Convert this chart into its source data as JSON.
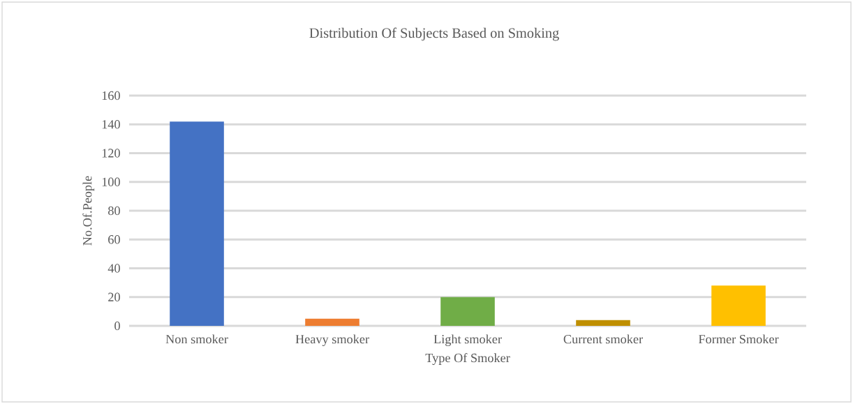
{
  "chart_data": {
    "type": "bar",
    "title": "Distribution Of Subjects Based on Smoking",
    "xlabel": "Type Of Smoker",
    "ylabel": "No.Of.People",
    "categories": [
      "Non smoker",
      "Heavy smoker",
      "Light smoker",
      "Current smoker",
      "Former Smoker"
    ],
    "values": [
      142,
      5,
      20,
      4,
      28
    ],
    "colors": [
      "#4472c4",
      "#ed7d31",
      "#70ad47",
      "#bf8f00",
      "#ffc000"
    ],
    "ylim": [
      0,
      160
    ],
    "yticks": [
      0,
      20,
      40,
      60,
      80,
      100,
      120,
      140,
      160
    ],
    "grid": "y"
  }
}
